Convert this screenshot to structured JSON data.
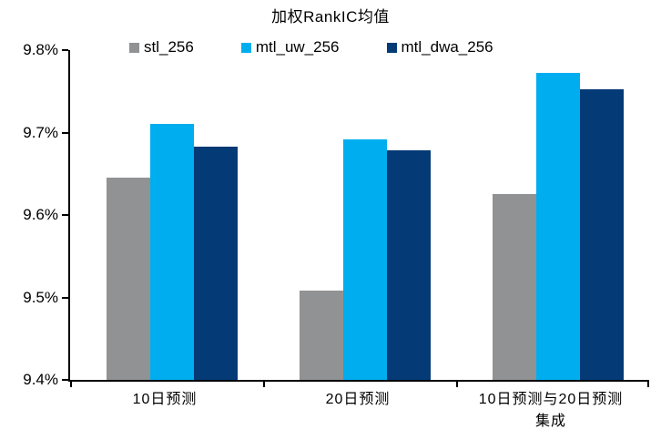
{
  "chart_data": {
    "type": "bar",
    "title": "加权RankIC均值",
    "categories": [
      "10日预测",
      "20日预测",
      "10日预测与20日预测\n集成"
    ],
    "series": [
      {
        "name": "stl_256",
        "color": "#919294",
        "values": [
          9.645,
          9.508,
          9.625
        ]
      },
      {
        "name": "mtl_uw_256",
        "color": "#00AEEF",
        "values": [
          9.71,
          9.692,
          9.772
        ]
      },
      {
        "name": "mtl_dwa_256",
        "color": "#043A76",
        "values": [
          9.683,
          9.679,
          9.753
        ]
      }
    ],
    "unit": "%",
    "xlabel": "",
    "ylabel": "",
    "ylim": [
      9.4,
      9.8
    ],
    "yticks": [
      "9.4%",
      "9.5%",
      "9.6%",
      "9.7%",
      "9.8%"
    ],
    "grid": false,
    "legend_position": "top",
    "axis_color": "#000000",
    "background_color": "#FFFFFF"
  }
}
